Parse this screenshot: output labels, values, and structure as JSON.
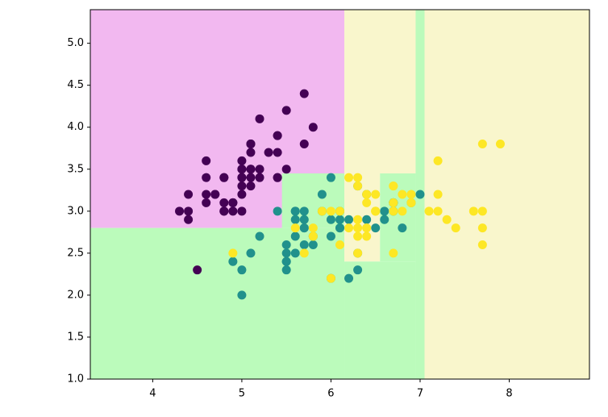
{
  "chart_data": {
    "type": "scatter",
    "xlim": [
      3.3,
      8.9
    ],
    "ylim": [
      1.0,
      5.4
    ],
    "xticks": [
      4,
      5,
      6,
      7,
      8
    ],
    "yticks": [
      {
        "value": 1.0,
        "label": "1.0"
      },
      {
        "value": 1.5,
        "label": "1.5"
      },
      {
        "value": 2.0,
        "label": "2.0"
      },
      {
        "value": 2.5,
        "label": "2.5"
      },
      {
        "value": 3.0,
        "label": "3.0"
      },
      {
        "value": 3.5,
        "label": "3.5"
      },
      {
        "value": 4.0,
        "label": "4.0"
      },
      {
        "value": 4.5,
        "label": "4.5"
      },
      {
        "value": 5.0,
        "label": "5.0"
      }
    ],
    "regions": [
      {
        "color": "#f2b8f0",
        "x": [
          3.3,
          6.15
        ],
        "y": [
          2.8,
          5.4
        ]
      },
      {
        "color": "#bbfbbb",
        "x": [
          3.3,
          6.15
        ],
        "y": [
          1.0,
          2.8
        ]
      },
      {
        "color": "#bbfbbb",
        "x": [
          5.45,
          6.15
        ],
        "y": [
          2.8,
          3.45
        ]
      },
      {
        "color": "#f9f6cc",
        "x": [
          6.15,
          6.95
        ],
        "y": [
          3.45,
          5.4
        ]
      },
      {
        "color": "#f9f6cc",
        "x": [
          6.15,
          6.55
        ],
        "y": [
          2.4,
          3.45
        ]
      },
      {
        "color": "#bbfbbb",
        "x": [
          6.15,
          6.95
        ],
        "y": [
          1.0,
          2.4
        ]
      },
      {
        "color": "#bbfbbb",
        "x": [
          6.55,
          6.95
        ],
        "y": [
          2.4,
          3.45
        ]
      },
      {
        "color": "#bbfbbb",
        "x": [
          6.95,
          7.05
        ],
        "y": [
          1.0,
          5.4
        ]
      },
      {
        "color": "#f9f6cc",
        "x": [
          7.05,
          8.9
        ],
        "y": [
          1.0,
          5.4
        ]
      }
    ],
    "series": [
      {
        "color": "#440154",
        "x": [
          5.1,
          4.9,
          4.7,
          4.6,
          5.0,
          5.4,
          4.6,
          5.0,
          4.4,
          4.9,
          5.4,
          4.8,
          4.8,
          4.3,
          5.8,
          5.7,
          5.4,
          5.1,
          5.7,
          5.1,
          5.4,
          5.1,
          4.6,
          5.1,
          4.8,
          5.0,
          5.0,
          5.2,
          5.2,
          4.7,
          4.8,
          5.4,
          5.2,
          5.5,
          4.9,
          5.0,
          5.5,
          4.9,
          4.4,
          5.1,
          5.0,
          4.5,
          4.4,
          5.0,
          5.1,
          4.8,
          5.1,
          4.6,
          5.3,
          5.0
        ],
        "values": [
          3.5,
          3.0,
          3.2,
          3.1,
          3.6,
          3.9,
          3.4,
          3.4,
          2.9,
          3.1,
          3.7,
          3.4,
          3.0,
          3.0,
          4.0,
          4.4,
          3.9,
          3.5,
          3.8,
          3.8,
          3.4,
          3.7,
          3.6,
          3.3,
          3.4,
          3.0,
          3.4,
          3.5,
          3.4,
          3.2,
          3.1,
          3.4,
          4.1,
          4.2,
          3.1,
          3.2,
          3.5,
          3.1,
          3.0,
          3.4,
          3.5,
          2.3,
          3.2,
          3.5,
          3.8,
          3.0,
          3.8,
          3.2,
          3.7,
          3.3
        ]
      },
      {
        "color": "#21918c",
        "x": [
          7.0,
          6.4,
          6.9,
          5.5,
          6.5,
          5.7,
          6.3,
          4.9,
          6.6,
          5.2,
          5.0,
          5.9,
          6.0,
          6.1,
          5.6,
          6.7,
          5.6,
          5.8,
          6.2,
          5.6,
          5.9,
          6.1,
          6.3,
          6.1,
          6.4,
          6.6,
          6.8,
          6.7,
          6.0,
          5.7,
          5.5,
          5.5,
          5.8,
          6.0,
          5.4,
          6.0,
          6.7,
          6.3,
          5.6,
          5.5,
          5.5,
          6.1,
          5.8,
          5.0,
          5.6,
          5.7,
          5.7,
          6.2,
          5.1,
          5.7
        ],
        "values": [
          3.2,
          3.2,
          3.1,
          2.3,
          2.8,
          2.8,
          3.3,
          2.4,
          2.9,
          2.7,
          2.0,
          3.0,
          2.2,
          2.9,
          2.9,
          3.1,
          3.0,
          2.7,
          2.2,
          2.5,
          3.2,
          2.8,
          2.5,
          2.8,
          2.9,
          3.0,
          2.8,
          3.0,
          2.9,
          2.6,
          2.4,
          2.4,
          2.7,
          2.7,
          3.0,
          3.4,
          3.1,
          2.3,
          3.0,
          2.5,
          2.6,
          3.0,
          2.6,
          2.3,
          2.7,
          3.0,
          2.9,
          2.9,
          2.5,
          2.8
        ]
      },
      {
        "color": "#fde725",
        "x": [
          6.3,
          5.8,
          7.1,
          6.3,
          6.5,
          7.6,
          4.9,
          7.3,
          6.7,
          7.2,
          6.5,
          6.4,
          6.8,
          5.7,
          5.8,
          6.4,
          6.5,
          7.7,
          7.7,
          6.0,
          6.9,
          5.6,
          7.7,
          6.3,
          6.7,
          7.2,
          6.2,
          6.1,
          6.4,
          7.2,
          7.4,
          7.9,
          6.4,
          6.3,
          6.1,
          7.7,
          6.3,
          6.4,
          6.0,
          6.9,
          6.7,
          6.9,
          5.8,
          6.8,
          6.7,
          6.7,
          6.3,
          6.5,
          6.2,
          5.9
        ],
        "values": [
          3.3,
          2.7,
          3.0,
          2.9,
          3.0,
          3.0,
          2.5,
          2.9,
          2.5,
          3.6,
          3.2,
          2.7,
          3.0,
          2.5,
          2.8,
          3.2,
          3.0,
          3.8,
          2.6,
          2.2,
          3.2,
          2.8,
          2.8,
          2.7,
          3.3,
          3.2,
          2.8,
          3.0,
          2.8,
          3.0,
          2.8,
          3.8,
          2.8,
          2.8,
          2.6,
          3.0,
          3.4,
          3.1,
          3.0,
          3.1,
          3.1,
          3.1,
          2.7,
          3.2,
          3.3,
          3.0,
          2.5,
          3.0,
          3.4,
          3.0
        ]
      }
    ]
  }
}
